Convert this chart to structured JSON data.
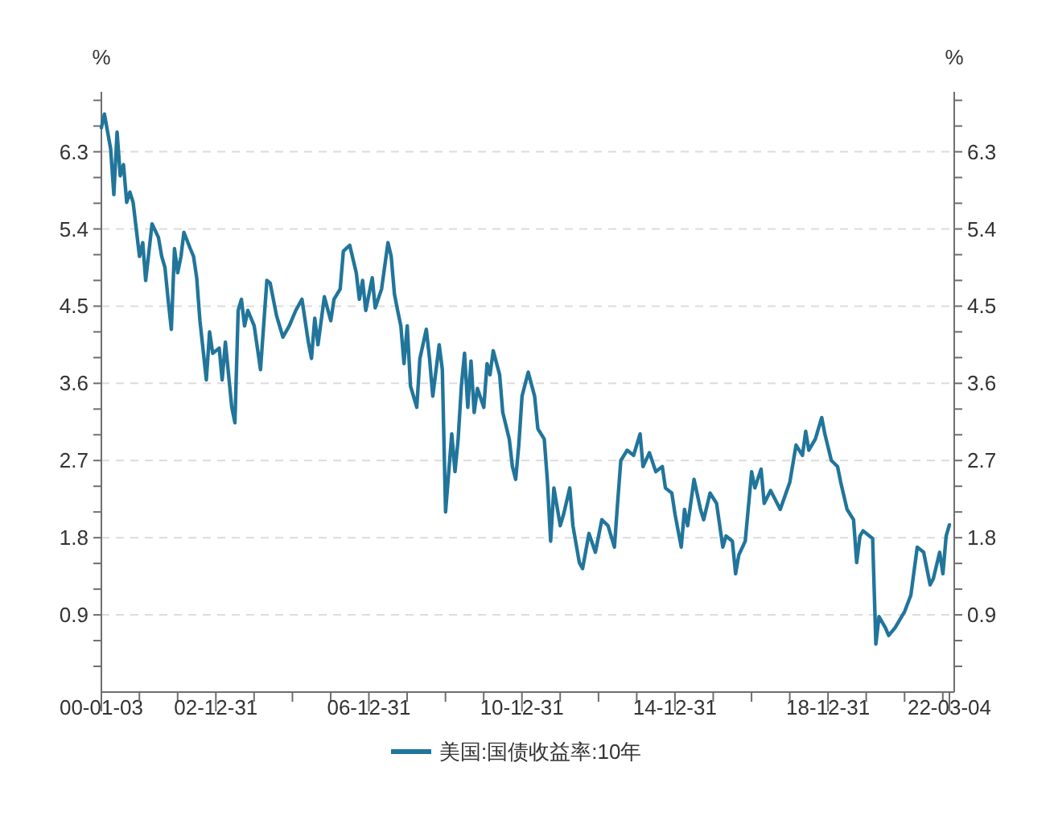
{
  "chart_data": {
    "type": "line",
    "ylabel": "%",
    "y2label": "%",
    "x": [
      "2000-01-03",
      "2000-02",
      "2000-04",
      "2000-05",
      "2000-06",
      "2000-07",
      "2000-08",
      "2000-09",
      "2000-10",
      "2000-11",
      "2001-01",
      "2001-02",
      "2001-03",
      "2001-05",
      "2001-07",
      "2001-08",
      "2001-09",
      "2001-10",
      "2001-11",
      "2001-12",
      "2002-01",
      "2002-02",
      "2002-03",
      "2002-05",
      "2002-06",
      "2002-07",
      "2002-08",
      "2002-10",
      "2002-11",
      "2002-12",
      "2003-02",
      "2003-03",
      "2003-04",
      "2003-06",
      "2003-07",
      "2003-08",
      "2003-09",
      "2003-10",
      "2003-11",
      "2004-01",
      "2004-03",
      "2004-05",
      "2004-06",
      "2004-08",
      "2004-10",
      "2004-12",
      "2005-02",
      "2005-04",
      "2005-06",
      "2005-07",
      "2005-08",
      "2005-09",
      "2005-11",
      "2006-01",
      "2006-02",
      "2006-04",
      "2006-05",
      "2006-07",
      "2006-09",
      "2006-10",
      "2006-11",
      "2006-12",
      "2007-02",
      "2007-03",
      "2007-05",
      "2007-07",
      "2007-08",
      "2007-09",
      "2007-10",
      "2007-11",
      "2007-12",
      "2008-01",
      "2008-02",
      "2008-04",
      "2008-05",
      "2008-07",
      "2008-08",
      "2008-09",
      "2008-11",
      "2008-12",
      "2009-01",
      "2009-03",
      "2009-04",
      "2009-05",
      "2009-06",
      "2009-07",
      "2009-08",
      "2009-09",
      "2009-10",
      "2009-11",
      "2010-01",
      "2010-02",
      "2010-03",
      "2010-04",
      "2010-06",
      "2010-07",
      "2010-09",
      "2010-10",
      "2010-11",
      "2010-12",
      "2011-01",
      "2011-03",
      "2011-05",
      "2011-06",
      "2011-08",
      "2011-09",
      "2011-10",
      "2011-11",
      "2012-01",
      "2012-02",
      "2012-04",
      "2012-05",
      "2012-07",
      "2012-08",
      "2012-10",
      "2012-12",
      "2013-02",
      "2013-04",
      "2013-06",
      "2013-07",
      "2013-08",
      "2013-10",
      "2013-12",
      "2014-02",
      "2014-03",
      "2014-05",
      "2014-07",
      "2014-09",
      "2014-10",
      "2014-12",
      "2015-01",
      "2015-03",
      "2015-04",
      "2015-05",
      "2015-07",
      "2015-09",
      "2015-10",
      "2015-12",
      "2016-02",
      "2016-04",
      "2016-05",
      "2016-07",
      "2016-08",
      "2016-09",
      "2016-11",
      "2017-01",
      "2017-02",
      "2017-04",
      "2017-05",
      "2017-07",
      "2017-10",
      "2018-01",
      "2018-03",
      "2018-05",
      "2018-06",
      "2018-07",
      "2018-09",
      "2018-11",
      "2018-12",
      "2019-02",
      "2019-04",
      "2019-05",
      "2019-07",
      "2019-09",
      "2019-10",
      "2019-11",
      "2019-12",
      "2020-03",
      "2020-04",
      "2020-05",
      "2020-07",
      "2020-08",
      "2020-10",
      "2021-01",
      "2021-03",
      "2021-05",
      "2021-07",
      "2021-09",
      "2021-10",
      "2021-12",
      "2022-01",
      "2022-02",
      "2022-03-04"
    ],
    "series": [
      {
        "name": "美国:国债收益率:10年",
        "color": "#21759b",
        "values": [
          6.58,
          6.74,
          6.33,
          5.8,
          6.53,
          6.02,
          6.15,
          5.71,
          5.83,
          5.71,
          5.08,
          5.24,
          4.8,
          5.46,
          5.3,
          5.08,
          4.95,
          4.58,
          4.23,
          5.17,
          4.89,
          5.08,
          5.36,
          5.17,
          5.08,
          4.83,
          4.33,
          3.64,
          4.2,
          3.95,
          4.01,
          3.64,
          4.08,
          3.32,
          3.14,
          4.45,
          4.58,
          4.27,
          4.45,
          4.27,
          3.76,
          4.8,
          4.77,
          4.39,
          4.14,
          4.27,
          4.45,
          4.58,
          4.08,
          3.89,
          4.36,
          4.05,
          4.61,
          4.33,
          4.58,
          4.7,
          5.14,
          5.21,
          4.89,
          4.58,
          4.8,
          4.45,
          4.83,
          4.48,
          4.7,
          5.24,
          5.08,
          4.64,
          4.45,
          4.27,
          3.83,
          4.27,
          3.57,
          3.32,
          3.89,
          4.23,
          3.89,
          3.45,
          4.05,
          3.76,
          2.1,
          3.01,
          2.57,
          2.95,
          3.57,
          3.95,
          3.32,
          3.86,
          3.26,
          3.54,
          3.32,
          3.83,
          3.7,
          3.98,
          3.7,
          3.26,
          2.95,
          2.63,
          2.48,
          2.88,
          3.45,
          3.73,
          3.45,
          3.07,
          2.95,
          2.45,
          1.76,
          2.38,
          1.94,
          2.07,
          2.38,
          1.94,
          1.51,
          1.44,
          1.85,
          1.63,
          2.01,
          1.94,
          1.69,
          2.2,
          2.7,
          2.82,
          2.76,
          3.01,
          2.63,
          2.79,
          2.57,
          2.63,
          2.38,
          2.32,
          2.07,
          1.69,
          2.13,
          1.94,
          2.48,
          2.13,
          2.01,
          2.32,
          2.2,
          1.69,
          1.82,
          1.76,
          1.38,
          1.6,
          1.76,
          2.57,
          2.38,
          2.6,
          2.2,
          2.35,
          2.13,
          2.45,
          2.88,
          2.76,
          3.04,
          2.82,
          2.95,
          3.2,
          3.01,
          2.7,
          2.63,
          2.45,
          2.13,
          2.01,
          1.51,
          1.82,
          1.88,
          1.79,
          0.56,
          0.88,
          0.75,
          0.66,
          0.75,
          0.94,
          1.13,
          1.69,
          1.63,
          1.25,
          1.32,
          1.63,
          1.38,
          1.82,
          1.95
        ]
      }
    ],
    "xlim": [
      "2000-01-03",
      "2022-03-04"
    ],
    "xticks": [
      {
        "value": "2000-01-03",
        "label": "00-01-03"
      },
      {
        "value": "2000-12-31",
        "label": null
      },
      {
        "value": "2001-12-31",
        "label": null
      },
      {
        "value": "2002-12-31",
        "label": "02-12-31"
      },
      {
        "value": "2003-12-31",
        "label": null
      },
      {
        "value": "2004-12-31",
        "label": null
      },
      {
        "value": "2005-12-31",
        "label": null
      },
      {
        "value": "2006-12-31",
        "label": "06-12-31"
      },
      {
        "value": "2007-12-31",
        "label": null
      },
      {
        "value": "2008-12-31",
        "label": null
      },
      {
        "value": "2009-12-31",
        "label": null
      },
      {
        "value": "2010-12-31",
        "label": "10-12-31"
      },
      {
        "value": "2011-12-31",
        "label": null
      },
      {
        "value": "2012-12-31",
        "label": null
      },
      {
        "value": "2013-12-31",
        "label": null
      },
      {
        "value": "2014-12-31",
        "label": "14-12-31"
      },
      {
        "value": "2015-12-31",
        "label": null
      },
      {
        "value": "2016-12-31",
        "label": null
      },
      {
        "value": "2017-12-31",
        "label": null
      },
      {
        "value": "2018-12-31",
        "label": "18-12-31"
      },
      {
        "value": "2019-12-31",
        "label": null
      },
      {
        "value": "2020-12-31",
        "label": null
      },
      {
        "value": "2021-12-31",
        "label": null
      },
      {
        "value": "2022-03-04",
        "label": "22-03-04"
      }
    ],
    "ylim": [
      0,
      7.0
    ],
    "yticks": [
      {
        "value": 0.3,
        "label": null
      },
      {
        "value": 0.6,
        "label": null
      },
      0.9,
      {
        "value": 1.2,
        "label": null
      },
      {
        "value": 1.5,
        "label": null
      },
      1.8,
      {
        "value": 2.1,
        "label": null
      },
      {
        "value": 2.4,
        "label": null
      },
      2.7,
      {
        "value": 3.0,
        "label": null
      },
      {
        "value": 3.3,
        "label": null
      },
      3.6,
      {
        "value": 3.9,
        "label": null
      },
      {
        "value": 4.2,
        "label": null
      },
      4.5,
      {
        "value": 4.8,
        "label": null
      },
      {
        "value": 5.1,
        "label": null
      },
      5.4,
      {
        "value": 5.7,
        "label": null
      },
      {
        "value": 6.0,
        "label": null
      },
      6.3,
      {
        "value": 6.6,
        "label": null
      },
      {
        "value": 6.9,
        "label": null
      }
    ],
    "y2lim": [
      0,
      7.0
    ],
    "y2ticks": [
      {
        "value": 0.3,
        "label": null
      },
      {
        "value": 0.6,
        "label": null
      },
      0.9,
      {
        "value": 1.2,
        "label": null
      },
      {
        "value": 1.5,
        "label": null
      },
      1.8,
      {
        "value": 2.1,
        "label": null
      },
      {
        "value": 2.4,
        "label": null
      },
      2.7,
      {
        "value": 3.0,
        "label": null
      },
      {
        "value": 3.3,
        "label": null
      },
      3.6,
      {
        "value": 3.9,
        "label": null
      },
      {
        "value": 4.2,
        "label": null
      },
      4.5,
      {
        "value": 4.8,
        "label": null
      },
      {
        "value": 5.1,
        "label": null
      },
      5.4,
      {
        "value": 5.7,
        "label": null
      },
      {
        "value": 6.0,
        "label": null
      },
      6.3,
      {
        "value": 6.6,
        "label": null
      },
      {
        "value": 6.9,
        "label": null
      }
    ],
    "grid": "y",
    "legend": "bottom",
    "marker": "none",
    "line_style": "solid"
  }
}
